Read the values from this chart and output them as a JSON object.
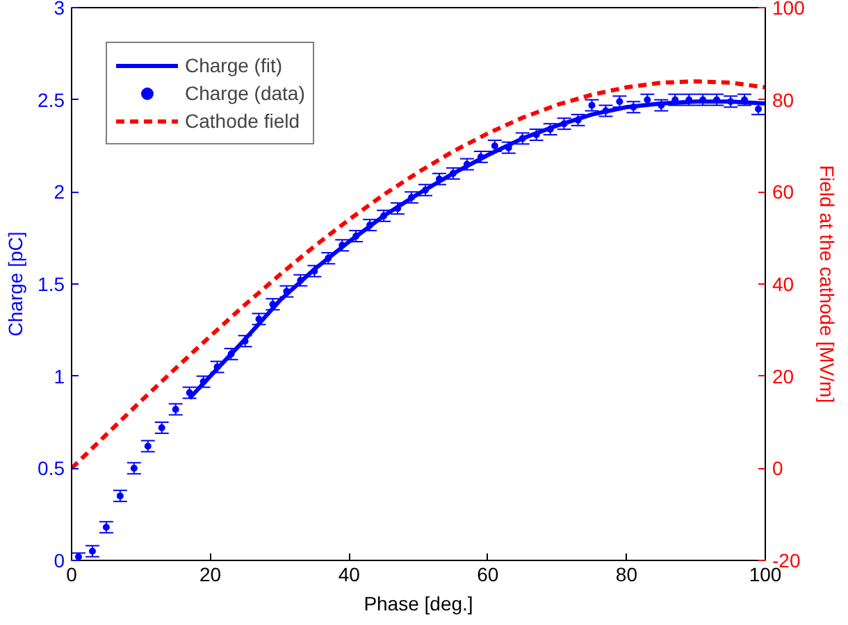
{
  "chart_data": {
    "type": "scatter",
    "xlabel": "Phase [deg.]",
    "ylabel": "Charge [pC]",
    "y2label": "Field at the cathode [MV/m]",
    "xlim": [
      0,
      100
    ],
    "xticks": [
      0,
      20,
      40,
      60,
      80,
      100
    ],
    "ylim": [
      0,
      3
    ],
    "yticks": [
      0,
      0.5,
      1,
      1.5,
      2,
      2.5,
      3
    ],
    "y2lim": [
      -20,
      100
    ],
    "y2ticks": [
      -20,
      0,
      20,
      40,
      60,
      80,
      100
    ],
    "grid": false,
    "legend": "top left",
    "series": [
      {
        "name": "Charge (fit)",
        "type": "line",
        "color": "#0000ff",
        "line_style": "solid",
        "marker": "none",
        "x": [
          17,
          20,
          25,
          30,
          35,
          40,
          45,
          50,
          55,
          60,
          65,
          70,
          75,
          80,
          85,
          90,
          95,
          100
        ],
        "values": [
          0.88,
          1.0,
          1.2,
          1.41,
          1.58,
          1.73,
          1.87,
          1.99,
          2.1,
          2.2,
          2.29,
          2.36,
          2.42,
          2.46,
          2.48,
          2.49,
          2.49,
          2.48
        ]
      },
      {
        "name": "Charge (data)",
        "color": "#0000ff",
        "marker": "circle",
        "x": [
          1,
          3,
          5,
          7,
          9,
          11,
          13,
          15,
          17,
          19,
          21,
          23,
          25,
          27,
          29,
          31,
          33,
          35,
          37,
          39,
          41,
          43,
          45,
          47,
          49,
          51,
          53,
          55,
          57,
          59,
          61,
          63,
          65,
          67,
          69,
          71,
          73,
          75,
          77,
          79,
          81,
          83,
          85,
          87,
          89,
          91,
          93,
          95,
          97,
          99
        ],
        "values": [
          0.02,
          0.05,
          0.18,
          0.35,
          0.5,
          0.62,
          0.72,
          0.82,
          0.91,
          0.97,
          1.05,
          1.12,
          1.19,
          1.31,
          1.39,
          1.46,
          1.52,
          1.57,
          1.64,
          1.71,
          1.76,
          1.82,
          1.87,
          1.91,
          1.97,
          2.01,
          2.07,
          2.1,
          2.15,
          2.19,
          2.25,
          2.24,
          2.29,
          2.31,
          2.34,
          2.37,
          2.39,
          2.47,
          2.44,
          2.49,
          2.46,
          2.5,
          2.47,
          2.5,
          2.5,
          2.5,
          2.5,
          2.49,
          2.5,
          2.45
        ],
        "errors": [
          0.02,
          0.03,
          0.03,
          0.03,
          0.03,
          0.03,
          0.03,
          0.03,
          0.03,
          0.03,
          0.03,
          0.03,
          0.03,
          0.03,
          0.03,
          0.03,
          0.03,
          0.03,
          0.03,
          0.03,
          0.03,
          0.03,
          0.03,
          0.03,
          0.03,
          0.03,
          0.03,
          0.03,
          0.03,
          0.03,
          0.03,
          0.03,
          0.03,
          0.03,
          0.03,
          0.03,
          0.03,
          0.03,
          0.03,
          0.03,
          0.03,
          0.03,
          0.03,
          0.03,
          0.03,
          0.03,
          0.03,
          0.03,
          0.03,
          0.03
        ]
      },
      {
        "name": "Cathode field",
        "type": "line",
        "axis": "y2",
        "color": "#ff0000",
        "line_style": "dashed",
        "marker": "none",
        "x": [
          0,
          5,
          10,
          15,
          20,
          25,
          30,
          35,
          40,
          45,
          50,
          55,
          60,
          65,
          70,
          75,
          80,
          85,
          90,
          95,
          100
        ],
        "values": [
          0,
          7.3,
          14.6,
          21.7,
          28.7,
          35.5,
          42,
          48.2,
          54,
          59.4,
          64.3,
          68.8,
          72.7,
          76.1,
          78.9,
          81.1,
          82.7,
          83.7,
          84,
          83.7,
          82.7
        ]
      }
    ]
  }
}
